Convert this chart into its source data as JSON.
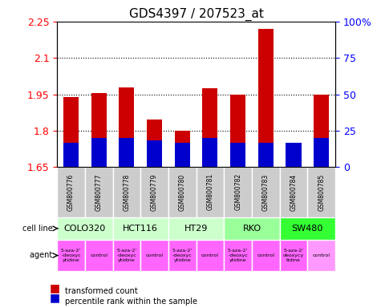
{
  "title": "GDS4397 / 207523_at",
  "samples": [
    "GSM800776",
    "GSM800777",
    "GSM800778",
    "GSM800779",
    "GSM800780",
    "GSM800781",
    "GSM800782",
    "GSM800783",
    "GSM800784",
    "GSM800785"
  ],
  "red_values": [
    1.94,
    1.955,
    1.98,
    1.845,
    1.8,
    1.975,
    1.95,
    2.22,
    1.745,
    1.95
  ],
  "blue_values": [
    0.1,
    0.12,
    0.12,
    0.11,
    0.1,
    0.12,
    0.1,
    0.1,
    0.1,
    0.12
  ],
  "blue_percent": [
    10,
    12,
    12,
    11,
    10,
    12,
    10,
    10,
    10,
    12
  ],
  "ymin": 1.65,
  "ymax": 2.25,
  "yticks": [
    1.65,
    1.8,
    1.95,
    2.1,
    2.25
  ],
  "ytick_labels": [
    "1.65",
    "1.8",
    "1.95",
    "2.1",
    "2.25"
  ],
  "right_yticks": [
    0,
    25,
    50,
    75,
    100
  ],
  "right_ytick_labels": [
    "0",
    "25",
    "50",
    "75",
    "100%"
  ],
  "dotted_yticks": [
    1.8,
    1.95,
    2.1
  ],
  "cell_lines": [
    {
      "label": "COLO320",
      "start": 0,
      "end": 2,
      "color": "#ccffcc"
    },
    {
      "label": "HCT116",
      "start": 2,
      "end": 4,
      "color": "#ccffcc"
    },
    {
      "label": "HT29",
      "start": 4,
      "end": 6,
      "color": "#ccffcc"
    },
    {
      "label": "RKO",
      "start": 6,
      "end": 8,
      "color": "#99ff99"
    },
    {
      "label": "SW480",
      "start": 8,
      "end": 10,
      "color": "#33ff33"
    }
  ],
  "agents": [
    {
      "label": "5-aza-2'\n-deoxyc\nytidine",
      "idx": 0,
      "color": "#ff66ff"
    },
    {
      "label": "control",
      "idx": 1,
      "color": "#ff66ff"
    },
    {
      "label": "5-aza-2'\n-deoxyc\nytidine",
      "idx": 2,
      "color": "#ff66ff"
    },
    {
      "label": "control",
      "idx": 3,
      "color": "#ff66ff"
    },
    {
      "label": "5-aza-2'\n-deoxyc\nytidine",
      "idx": 4,
      "color": "#ff66ff"
    },
    {
      "label": "control",
      "idx": 5,
      "color": "#ff66ff"
    },
    {
      "label": "5-aza-2'\n-deoxyc\nytidine",
      "idx": 6,
      "color": "#ff66ff"
    },
    {
      "label": "control",
      "idx": 7,
      "color": "#ff66ff"
    },
    {
      "label": "5-aza-2'\ndeoxycy\ntidine",
      "idx": 8,
      "color": "#ff66ff"
    },
    {
      "label": "control",
      "idx": 9,
      "color": "#ff99ff"
    }
  ],
  "bar_width": 0.55,
  "red_color": "#cc0000",
  "blue_color": "#0000cc",
  "sample_bg_color": "#cccccc",
  "legend_red": "transformed count",
  "legend_blue": "percentile rank within the sample",
  "ylabel_left_color": "red",
  "ylabel_right_color": "blue"
}
